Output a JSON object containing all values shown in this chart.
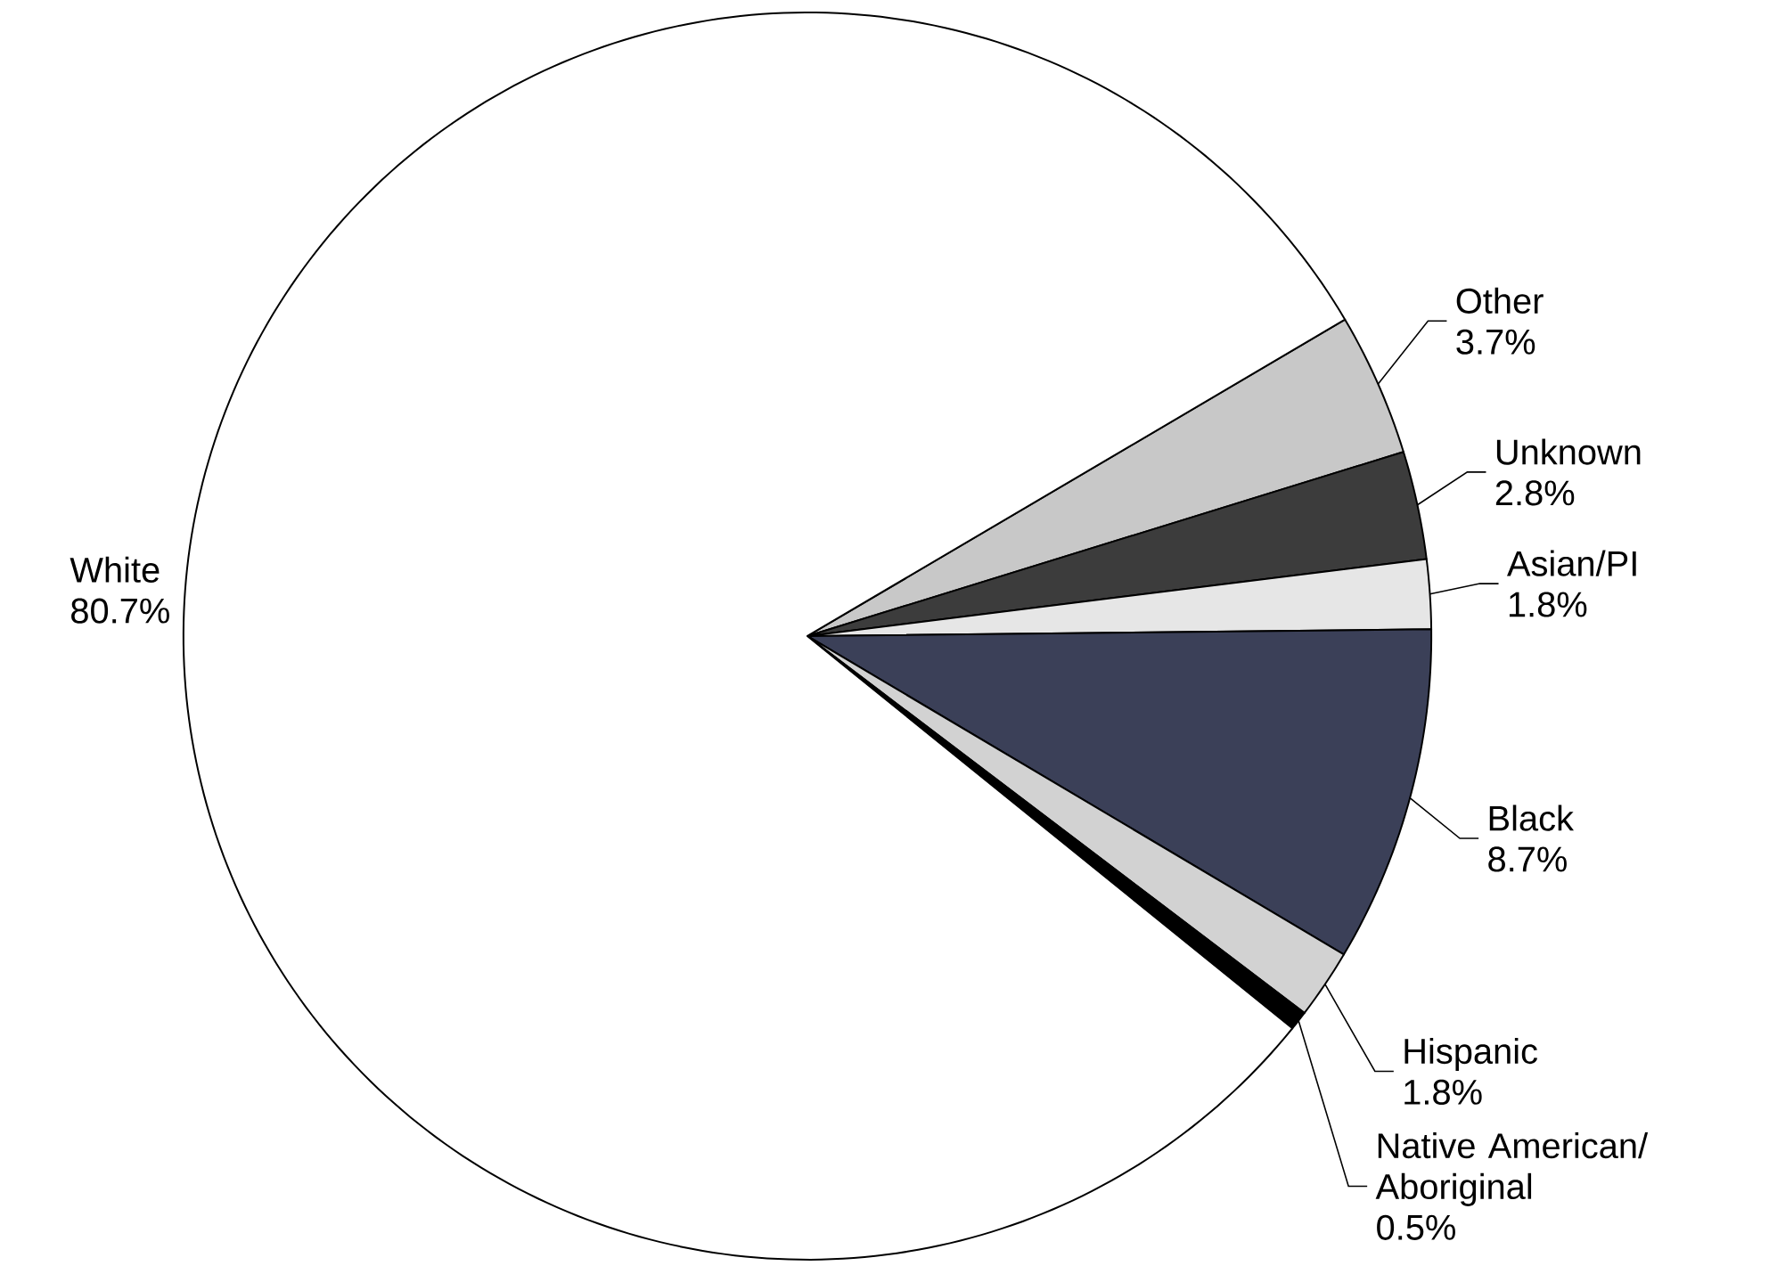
{
  "chart_data": {
    "type": "pie",
    "categories": [
      "Other",
      "Unknown",
      "Asian/PI",
      "Black",
      "Hispanic",
      "Native American/ Aboriginal",
      "White"
    ],
    "values": [
      3.7,
      2.8,
      1.8,
      8.7,
      1.8,
      0.5,
      80.7
    ],
    "colors": [
      "#c8c8c8",
      "#3c3c3c",
      "#e6e6e6",
      "#3b4058",
      "#d2d2d2",
      "#000000",
      "#ffffff"
    ],
    "value_labels": [
      "3.7%",
      "2.8%",
      "1.8%",
      "8.7%",
      "1.8%",
      "0.5%",
      "80.7%"
    ]
  }
}
